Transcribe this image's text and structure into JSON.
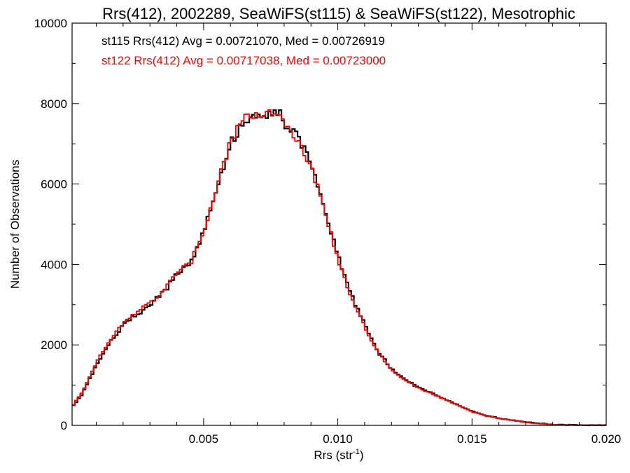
{
  "chart_data": {
    "type": "line",
    "title": "Rrs(412), 2002289, SeaWiFS(st115) & SeaWiFS(st122), Mesotrophic",
    "xlabel": "Rrs (str",
    "xlabel_sup": "-1",
    "xlabel_end": ")",
    "ylabel": "Number of Observations",
    "xlim": [
      0.0001,
      0.02
    ],
    "ylim": [
      0,
      10000
    ],
    "x_ticks": [
      {
        "value": 0.005,
        "label": "0.005"
      },
      {
        "value": 0.01,
        "label": "0.010"
      },
      {
        "value": 0.015,
        "label": "0.015"
      },
      {
        "value": 0.02,
        "label": "0.020"
      }
    ],
    "y_ticks": [
      {
        "value": 0,
        "label": "0"
      },
      {
        "value": 2000,
        "label": "2000"
      },
      {
        "value": 4000,
        "label": "4000"
      },
      {
        "value": 6000,
        "label": "6000"
      },
      {
        "value": 8000,
        "label": "8000"
      },
      {
        "value": 10000,
        "label": "10000"
      }
    ],
    "annotations": [
      {
        "text": "st115 Rrs(412) Avg = 0.00721070, Med = 0.00726919",
        "color": "#000000"
      },
      {
        "text": "st122 Rrs(412) Avg = 0.00717038, Med = 0.00723000",
        "color": "#ff0000"
      }
    ],
    "series": [
      {
        "color": "#000000",
        "x": [
          0.0001,
          0.0005,
          0.001,
          0.0015,
          0.002,
          0.0025,
          0.003,
          0.0035,
          0.004,
          0.0045,
          0.005,
          0.0055,
          0.006,
          0.0065,
          0.007,
          0.0075,
          0.0078,
          0.008,
          0.0085,
          0.009,
          0.0095,
          0.01,
          0.0105,
          0.011,
          0.0115,
          0.012,
          0.0125,
          0.013,
          0.0135,
          0.014,
          0.0145,
          0.015,
          0.0155,
          0.016,
          0.017,
          0.018,
          0.019,
          0.02
        ],
        "y": [
          450,
          800,
          1500,
          2050,
          2500,
          2750,
          3000,
          3300,
          3750,
          4000,
          4800,
          5900,
          7000,
          7550,
          7800,
          7750,
          7800,
          7500,
          7150,
          6500,
          5400,
          4200,
          3250,
          2500,
          1850,
          1400,
          1150,
          950,
          800,
          650,
          500,
          350,
          250,
          180,
          80,
          20,
          5,
          0
        ]
      },
      {
        "color": "#ff0000",
        "x": [
          0.0001,
          0.0005,
          0.001,
          0.0015,
          0.002,
          0.0025,
          0.003,
          0.0035,
          0.004,
          0.0045,
          0.005,
          0.0055,
          0.006,
          0.0065,
          0.007,
          0.0075,
          0.0078,
          0.008,
          0.0085,
          0.009,
          0.0095,
          0.01,
          0.0105,
          0.011,
          0.0115,
          0.012,
          0.0125,
          0.013,
          0.0135,
          0.014,
          0.0145,
          0.015,
          0.0155,
          0.016,
          0.017,
          0.018,
          0.019,
          0.02
        ],
        "y": [
          470,
          850,
          1550,
          2100,
          2550,
          2800,
          3050,
          3350,
          3800,
          4000,
          4850,
          5950,
          7050,
          7600,
          7750,
          7700,
          7750,
          7450,
          7100,
          6450,
          5350,
          4150,
          3200,
          2450,
          1800,
          1380,
          1130,
          930,
          790,
          640,
          490,
          340,
          240,
          170,
          75,
          18,
          5,
          0
        ]
      }
    ]
  }
}
